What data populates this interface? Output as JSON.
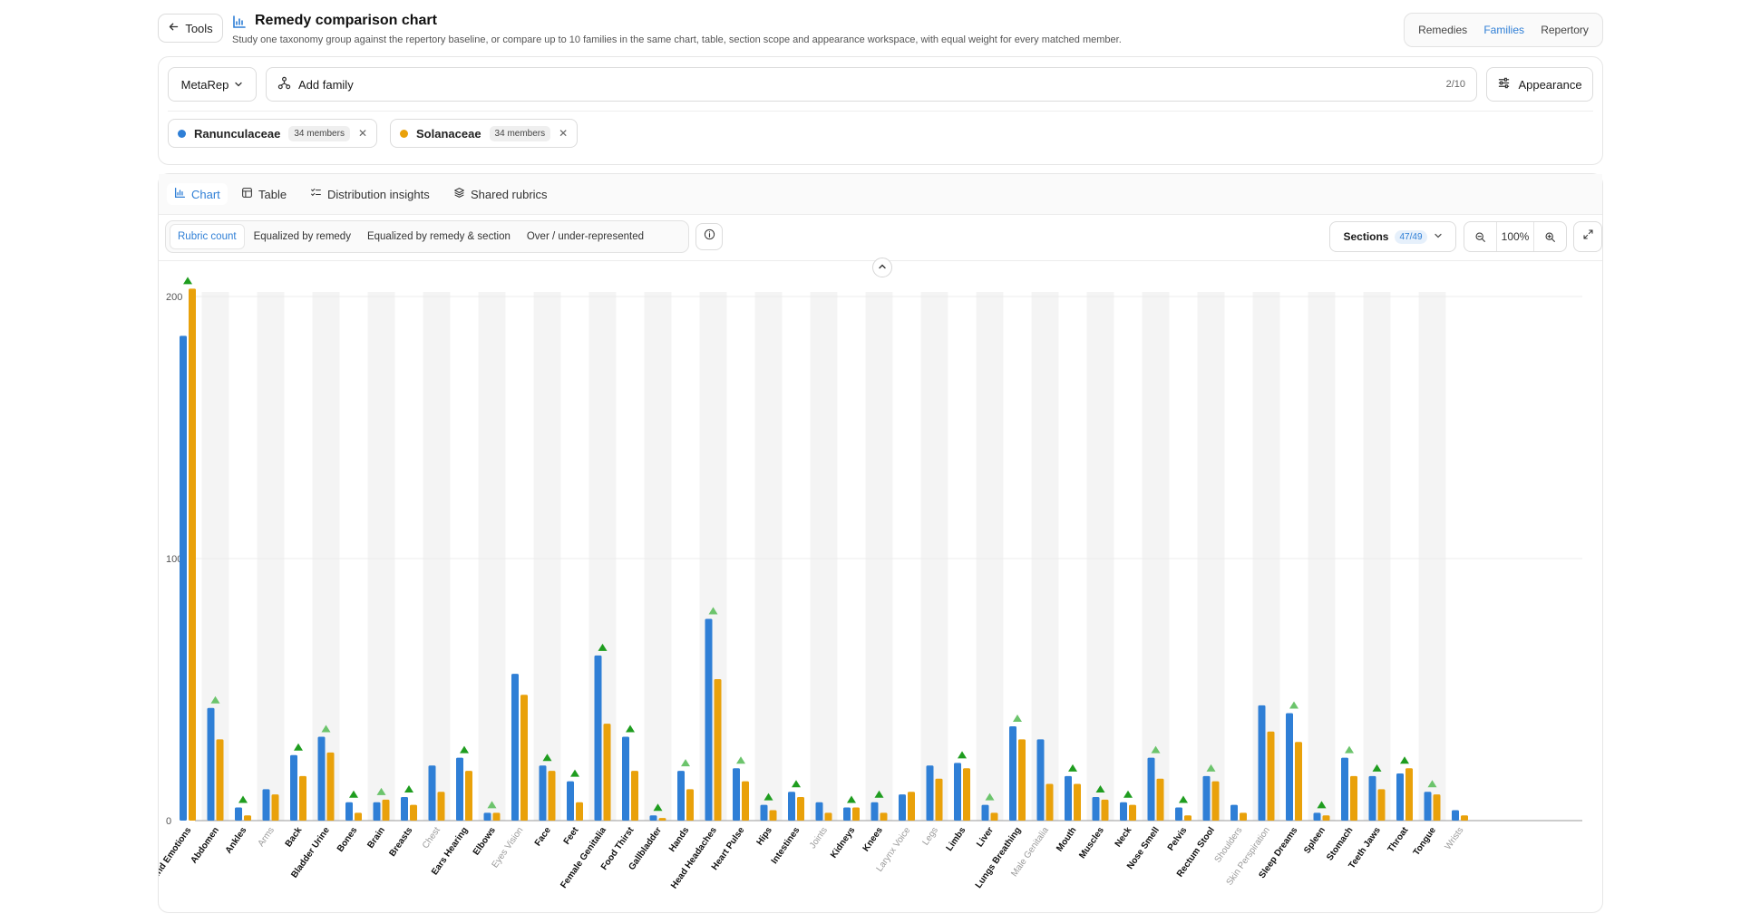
{
  "header": {
    "back_label": "Tools",
    "title": "Remedy comparison chart",
    "subtitle": "Study one taxonomy group against the repertory baseline, or compare up to 10 families in the same chart, table, section scope and appearance workspace, with equal weight for every matched member.",
    "mode_tabs": [
      {
        "label": "Remedies",
        "active": false
      },
      {
        "label": "Families",
        "active": true
      },
      {
        "label": "Repertory",
        "active": false
      }
    ]
  },
  "family_panel": {
    "repertory_select": "MetaRep",
    "add_family_label": "Add family",
    "family_count": "2/10",
    "appearance_label": "Appearance",
    "families": [
      {
        "name": "Ranunculaceae",
        "members": "34 members",
        "color": "#2f7fd6"
      },
      {
        "name": "Solanaceae",
        "members": "34 members",
        "color": "#e9a10a"
      }
    ]
  },
  "view_tabs": [
    {
      "label": "Chart",
      "active": true,
      "icon": "bar-chart-icon"
    },
    {
      "label": "Table",
      "active": false,
      "icon": "table-icon"
    },
    {
      "label": "Distribution insights",
      "active": false,
      "icon": "list-check-icon"
    },
    {
      "label": "Shared rubrics",
      "active": false,
      "icon": "layers-icon"
    }
  ],
  "metric_modes": [
    {
      "label": "Rubric count",
      "active": true
    },
    {
      "label": "Equalized by remedy",
      "active": false
    },
    {
      "label": "Equalized by remedy & section",
      "active": false
    },
    {
      "label": "Over / under-represented",
      "active": false
    }
  ],
  "sections": {
    "label": "Sections",
    "count": "47/49"
  },
  "zoom": {
    "level": "100%"
  },
  "colors": {
    "series_1": "#2f7fd6",
    "series_2": "#e9a10a",
    "marker_strong": "#1f9d1f",
    "marker_light": "#6cc46c",
    "band": "#f4f4f4"
  },
  "chart_data": {
    "type": "bar",
    "ylim": [
      0,
      200
    ],
    "yticks": [
      0,
      100,
      200
    ],
    "grid": true,
    "legend": "none",
    "categories": [
      "Mind Emotions",
      "Abdomen",
      "Ankles",
      "Arms",
      "Back",
      "Bladder Urine",
      "Bones",
      "Brain",
      "Breasts",
      "Chest",
      "Ears Hearing",
      "Elbows",
      "Eyes Vision",
      "Face",
      "Feet",
      "Female Genitalia",
      "Food Thirst",
      "Gallbladder",
      "Hands",
      "Head Headaches",
      "Heart Pulse",
      "Hips",
      "Intestines",
      "Joints",
      "Kidneys",
      "Knees",
      "Larynx Voice",
      "Legs",
      "Limbs",
      "Liver",
      "Lungs Breathing",
      "Male Genitalia",
      "Mouth",
      "Muscles",
      "Neck",
      "Nose Smell",
      "Pelvis",
      "Rectum Stool",
      "Shoulders",
      "Skin Perspiration",
      "Sleep Dreams",
      "Spleen",
      "Stomach",
      "Teeth Jaws",
      "Throat",
      "Tongue",
      "Wrists"
    ],
    "category_bold": [
      true,
      true,
      true,
      false,
      true,
      true,
      true,
      true,
      true,
      false,
      true,
      true,
      false,
      true,
      true,
      true,
      true,
      true,
      true,
      true,
      true,
      true,
      true,
      false,
      true,
      true,
      false,
      false,
      true,
      true,
      true,
      false,
      true,
      true,
      true,
      true,
      true,
      true,
      false,
      false,
      true,
      true,
      true,
      true,
      true,
      true,
      false
    ],
    "series": [
      {
        "name": "Ranunculaceae",
        "values": [
          185,
          43,
          5,
          12,
          25,
          32,
          7,
          7,
          9,
          21,
          24,
          3,
          56,
          21,
          15,
          63,
          32,
          2,
          19,
          77,
          20,
          6,
          11,
          7,
          5,
          7,
          10,
          21,
          22,
          6,
          36,
          31,
          17,
          9,
          7,
          24,
          5,
          17,
          6,
          44,
          41,
          3,
          24,
          17,
          18,
          11,
          4
        ]
      },
      {
        "name": "Solanaceae",
        "values": [
          203,
          31,
          2,
          10,
          17,
          26,
          3,
          8,
          6,
          11,
          19,
          3,
          48,
          19,
          7,
          37,
          19,
          1,
          12,
          54,
          15,
          4,
          9,
          3,
          5,
          3,
          11,
          16,
          20,
          3,
          31,
          14,
          14,
          8,
          6,
          16,
          2,
          15,
          3,
          34,
          30,
          2,
          17,
          12,
          20,
          10,
          2
        ]
      }
    ],
    "markers": [
      {
        "index": 0,
        "style": "strong"
      },
      {
        "index": 1,
        "style": "light"
      },
      {
        "index": 2,
        "style": "strong"
      },
      {
        "index": 4,
        "style": "strong"
      },
      {
        "index": 5,
        "style": "light"
      },
      {
        "index": 6,
        "style": "strong"
      },
      {
        "index": 7,
        "style": "light"
      },
      {
        "index": 8,
        "style": "strong"
      },
      {
        "index": 10,
        "style": "strong"
      },
      {
        "index": 11,
        "style": "light"
      },
      {
        "index": 13,
        "style": "strong"
      },
      {
        "index": 14,
        "style": "strong"
      },
      {
        "index": 15,
        "style": "strong"
      },
      {
        "index": 16,
        "style": "strong"
      },
      {
        "index": 17,
        "style": "strong"
      },
      {
        "index": 18,
        "style": "light"
      },
      {
        "index": 19,
        "style": "light"
      },
      {
        "index": 20,
        "style": "light"
      },
      {
        "index": 21,
        "style": "strong"
      },
      {
        "index": 22,
        "style": "strong"
      },
      {
        "index": 24,
        "style": "strong"
      },
      {
        "index": 25,
        "style": "strong"
      },
      {
        "index": 28,
        "style": "strong"
      },
      {
        "index": 29,
        "style": "light"
      },
      {
        "index": 30,
        "style": "light"
      },
      {
        "index": 32,
        "style": "strong"
      },
      {
        "index": 33,
        "style": "strong"
      },
      {
        "index": 34,
        "style": "strong"
      },
      {
        "index": 35,
        "style": "light"
      },
      {
        "index": 36,
        "style": "strong"
      },
      {
        "index": 37,
        "style": "light"
      },
      {
        "index": 40,
        "style": "light"
      },
      {
        "index": 41,
        "style": "strong"
      },
      {
        "index": 42,
        "style": "light"
      },
      {
        "index": 43,
        "style": "strong"
      },
      {
        "index": 44,
        "style": "strong"
      },
      {
        "index": 45,
        "style": "light"
      }
    ]
  }
}
